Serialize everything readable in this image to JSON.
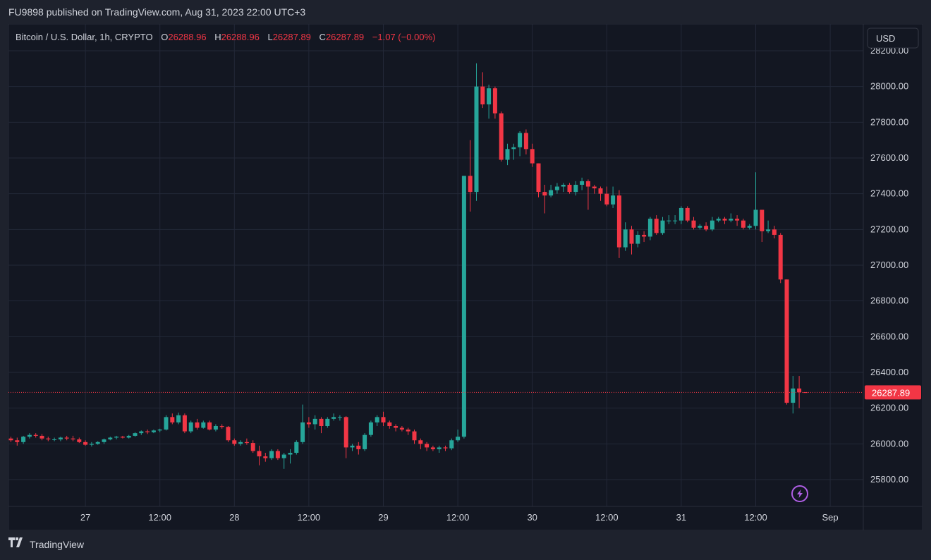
{
  "header": {
    "publisher": "FU9898 published on TradingView.com, Aug 31, 2023 22:00 UTC+3"
  },
  "footer": {
    "brand": "TradingView"
  },
  "colors": {
    "bg": "#131722",
    "outer": "#1e222d",
    "grid": "#232838",
    "up": "#26a69a",
    "down": "#f23645",
    "text": "#d1d4dc",
    "border": "#363a45"
  },
  "legend": {
    "symbol": "Bitcoin / U.S. Dollar, 1h, CRYPTO",
    "o_label": "O",
    "o": "26288.96",
    "h_label": "H",
    "h": "26288.96",
    "l_label": "L",
    "l": "26287.89",
    "c_label": "C",
    "c": "26287.89",
    "change": "−1.07 (−0.00%)"
  },
  "currency_button": "USD",
  "last_price_label": "26287.89",
  "chart_data": {
    "type": "candlestick",
    "title": "Bitcoin / U.S. Dollar, 1h, CRYPTO",
    "ylim": [
      25650,
      28350
    ],
    "y_ticks": [
      "25800.00",
      "26000.00",
      "26200.00",
      "26400.00",
      "26600.00",
      "26800.00",
      "27000.00",
      "27200.00",
      "27400.00",
      "27600.00",
      "27800.00",
      "28000.00",
      "28200.00"
    ],
    "x_ticks": [
      {
        "label": "27",
        "index": 12
      },
      {
        "label": "12:00",
        "index": 24
      },
      {
        "label": "28",
        "index": 36
      },
      {
        "label": "12:00",
        "index": 48
      },
      {
        "label": "29",
        "index": 60
      },
      {
        "label": "12:00",
        "index": 72
      },
      {
        "label": "30",
        "index": 84
      },
      {
        "label": "12:00",
        "index": 96
      },
      {
        "label": "31",
        "index": 108
      },
      {
        "label": "12:00",
        "index": 120
      },
      {
        "label": "Sep",
        "index": 132
      }
    ],
    "last_price": 26287.89,
    "candles": [
      [
        26030,
        26040,
        26010,
        26020
      ],
      [
        26020,
        26035,
        25990,
        26010
      ],
      [
        26010,
        26045,
        26000,
        26040
      ],
      [
        26040,
        26060,
        26030,
        26050
      ],
      [
        26050,
        26060,
        26035,
        26045
      ],
      [
        26045,
        26055,
        26020,
        26030
      ],
      [
        26030,
        26040,
        26015,
        26025
      ],
      [
        26025,
        26035,
        26015,
        26025
      ],
      [
        26025,
        26040,
        26015,
        26035
      ],
      [
        26035,
        26045,
        26020,
        26030
      ],
      [
        26030,
        26045,
        26015,
        26025
      ],
      [
        26025,
        26035,
        26005,
        26010
      ],
      [
        26010,
        26020,
        25990,
        25995
      ],
      [
        25995,
        26010,
        25985,
        26000
      ],
      [
        26000,
        26015,
        25995,
        26010
      ],
      [
        26010,
        26030,
        26000,
        26025
      ],
      [
        26025,
        26040,
        26020,
        26035
      ],
      [
        26035,
        26045,
        26025,
        26040
      ],
      [
        26040,
        26045,
        26030,
        26035
      ],
      [
        26035,
        26050,
        26030,
        26045
      ],
      [
        26045,
        26065,
        26040,
        26060
      ],
      [
        26060,
        26075,
        26050,
        26070
      ],
      [
        26070,
        26080,
        26055,
        26065
      ],
      [
        26065,
        26080,
        26060,
        26075
      ],
      [
        26075,
        26085,
        26065,
        26080
      ],
      [
        26080,
        26160,
        26075,
        26150
      ],
      [
        26150,
        26170,
        26110,
        26120
      ],
      [
        26120,
        26175,
        26110,
        26160
      ],
      [
        26160,
        26170,
        26060,
        26070
      ],
      [
        26070,
        26130,
        26060,
        26120
      ],
      [
        26120,
        26140,
        26080,
        26090
      ],
      [
        26090,
        26130,
        26085,
        26120
      ],
      [
        26120,
        26130,
        26075,
        26080
      ],
      [
        26080,
        26110,
        26070,
        26100
      ],
      [
        26100,
        26110,
        26085,
        26095
      ],
      [
        26095,
        26100,
        26010,
        26020
      ],
      [
        26020,
        26030,
        25990,
        26000
      ],
      [
        26000,
        26020,
        25990,
        26010
      ],
      [
        26010,
        26030,
        25995,
        26005
      ],
      [
        26005,
        26020,
        25950,
        25960
      ],
      [
        25960,
        25990,
        25880,
        25930
      ],
      [
        25930,
        25950,
        25900,
        25920
      ],
      [
        25920,
        25970,
        25910,
        25960
      ],
      [
        25960,
        25970,
        25910,
        25920
      ],
      [
        25920,
        25950,
        25860,
        25940
      ],
      [
        25940,
        25970,
        25890,
        25950
      ],
      [
        25950,
        26020,
        25940,
        26010
      ],
      [
        26010,
        26220,
        26000,
        26120
      ],
      [
        26120,
        26150,
        26090,
        26110
      ],
      [
        26110,
        26160,
        26080,
        26140
      ],
      [
        26140,
        26150,
        26060,
        26100
      ],
      [
        26100,
        26150,
        26090,
        26140
      ],
      [
        26140,
        26170,
        26130,
        26150
      ],
      [
        26150,
        26160,
        26130,
        26150
      ],
      [
        26150,
        26155,
        25920,
        25980
      ],
      [
        25980,
        26000,
        25960,
        25990
      ],
      [
        25990,
        26010,
        25940,
        25970
      ],
      [
        25970,
        26060,
        25960,
        26050
      ],
      [
        26050,
        26130,
        26040,
        26120
      ],
      [
        26120,
        26160,
        26100,
        26150
      ],
      [
        26150,
        26180,
        26100,
        26120
      ],
      [
        26120,
        26130,
        26085,
        26100
      ],
      [
        26100,
        26110,
        26070,
        26090
      ],
      [
        26090,
        26100,
        26070,
        26080
      ],
      [
        26080,
        26090,
        26050,
        26070
      ],
      [
        26070,
        26080,
        26000,
        26020
      ],
      [
        26020,
        26030,
        25970,
        26000
      ],
      [
        26000,
        26010,
        25960,
        25980
      ],
      [
        25980,
        25990,
        25960,
        25970
      ],
      [
        25970,
        25990,
        25950,
        25980
      ],
      [
        25980,
        25990,
        25960,
        25975
      ],
      [
        25975,
        26030,
        25965,
        26020
      ],
      [
        26020,
        26080,
        26010,
        26040
      ],
      [
        26040,
        27500,
        26030,
        27500
      ],
      [
        27500,
        27700,
        27300,
        27410
      ],
      [
        27410,
        28130,
        27360,
        28000
      ],
      [
        28000,
        28080,
        27880,
        27900
      ],
      [
        27900,
        28010,
        27820,
        27990
      ],
      [
        27990,
        28000,
        27820,
        27850
      ],
      [
        27850,
        27860,
        27580,
        27590
      ],
      [
        27590,
        27680,
        27560,
        27650
      ],
      [
        27650,
        27680,
        27590,
        27660
      ],
      [
        27660,
        27750,
        27610,
        27740
      ],
      [
        27740,
        27760,
        27620,
        27650
      ],
      [
        27650,
        27680,
        27550,
        27570
      ],
      [
        27570,
        27570,
        27380,
        27410
      ],
      [
        27410,
        27450,
        27290,
        27390
      ],
      [
        27390,
        27450,
        27380,
        27420
      ],
      [
        27420,
        27460,
        27400,
        27440
      ],
      [
        27440,
        27460,
        27410,
        27450
      ],
      [
        27450,
        27460,
        27400,
        27410
      ],
      [
        27410,
        27470,
        27390,
        27450
      ],
      [
        27450,
        27490,
        27420,
        27470
      ],
      [
        27470,
        27480,
        27310,
        27440
      ],
      [
        27440,
        27450,
        27400,
        27430
      ],
      [
        27430,
        27440,
        27360,
        27400
      ],
      [
        27400,
        27440,
        27330,
        27340
      ],
      [
        27340,
        27440,
        27320,
        27390
      ],
      [
        27390,
        27420,
        27040,
        27100
      ],
      [
        27100,
        27240,
        27080,
        27200
      ],
      [
        27200,
        27220,
        27060,
        27120
      ],
      [
        27120,
        27190,
        27100,
        27170
      ],
      [
        27170,
        27190,
        27130,
        27160
      ],
      [
        27160,
        27270,
        27140,
        27260
      ],
      [
        27260,
        27280,
        27170,
        27180
      ],
      [
        27180,
        27270,
        27170,
        27250
      ],
      [
        27250,
        27280,
        27230,
        27250
      ],
      [
        27250,
        27280,
        27230,
        27250
      ],
      [
        27250,
        27330,
        27230,
        27320
      ],
      [
        27320,
        27330,
        27240,
        27250
      ],
      [
        27250,
        27270,
        27200,
        27210
      ],
      [
        27210,
        27230,
        27200,
        27220
      ],
      [
        27220,
        27240,
        27190,
        27200
      ],
      [
        27200,
        27270,
        27190,
        27250
      ],
      [
        27250,
        27270,
        27240,
        27260
      ],
      [
        27260,
        27270,
        27230,
        27250
      ],
      [
        27250,
        27290,
        27240,
        27260
      ],
      [
        27260,
        27280,
        27220,
        27250
      ],
      [
        27250,
        27260,
        27200,
        27210
      ],
      [
        27210,
        27230,
        27200,
        27220
      ],
      [
        27220,
        27520,
        27200,
        27310
      ],
      [
        27310,
        27310,
        27130,
        27190
      ],
      [
        27190,
        27250,
        27180,
        27200
      ],
      [
        27200,
        27220,
        27150,
        27170
      ],
      [
        27170,
        27180,
        26900,
        26920
      ],
      [
        26920,
        26920,
        26220,
        26230
      ],
      [
        26230,
        26380,
        26170,
        26310
      ],
      [
        26310,
        26380,
        26200,
        26288.96
      ],
      [
        26288.96,
        26288.96,
        26287.89,
        26287.89
      ]
    ]
  }
}
